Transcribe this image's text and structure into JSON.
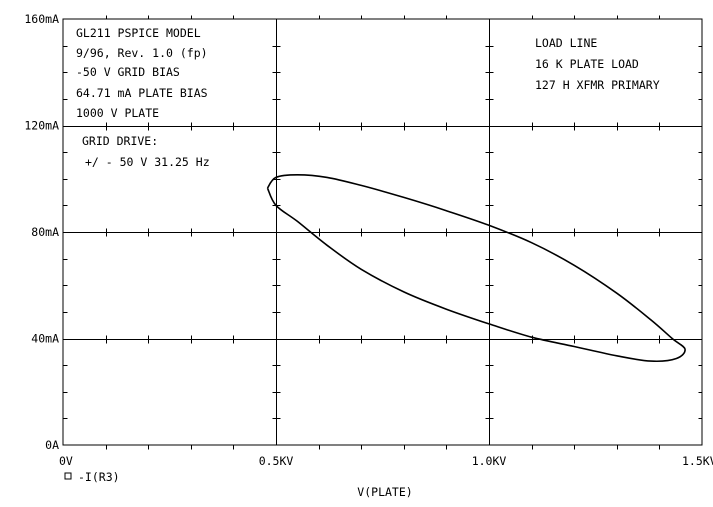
{
  "chart_data": {
    "type": "line",
    "title": "",
    "xlabel": "V(PLATE)",
    "ylabel": "",
    "x_range_kv": [
      0,
      1.5
    ],
    "y_range_ma": [
      0,
      160
    ],
    "x_ticks": [
      {
        "value": 0,
        "label": "0V"
      },
      {
        "value": 0.5,
        "label": "0.5KV"
      },
      {
        "value": 1.0,
        "label": "1.0KV"
      },
      {
        "value": 1.5,
        "label": "1.5KV"
      }
    ],
    "y_ticks": [
      {
        "value": 0,
        "label": "0A"
      },
      {
        "value": 40,
        "label": "40mA"
      },
      {
        "value": 80,
        "label": "80mA"
      },
      {
        "value": 120,
        "label": "120mA"
      },
      {
        "value": 160,
        "label": "160mA"
      }
    ],
    "grid": true,
    "legend": {
      "placement": "bottom-left",
      "marker": "□",
      "label": "-I(R3)"
    },
    "annotations_left": [
      "GL211 PSPICE MODEL",
      "9/96, Rev. 1.0  (fp)",
      "-50 V GRID BIAS",
      "64.71 mA PLATE BIAS",
      "1000 V PLATE"
    ],
    "annotations_grid": [
      "GRID DRIVE:",
      "+/ - 50 V 31.25 Hz"
    ],
    "annotations_right": [
      "LOAD LINE",
      "16 K PLATE LOAD",
      "127 H XFMR PRIMARY"
    ],
    "series": [
      {
        "x": [
          0.48,
          0.5,
          0.55,
          0.62,
          0.7,
          0.8,
          0.9,
          1.0,
          1.1,
          1.2,
          1.3,
          1.38,
          1.43,
          1.46,
          1.44,
          1.38,
          1.3,
          1.2,
          1.1,
          1.0,
          0.9,
          0.8,
          0.7,
          0.62,
          0.55,
          0.5,
          0.48
        ],
        "y": [
          96.5,
          100.5,
          101.5,
          100.5,
          97.5,
          93.0,
          88.0,
          82.5,
          76.0,
          67.5,
          57.0,
          47.0,
          40.0,
          36.0,
          32.5,
          31.5,
          33.5,
          37.0,
          40.5,
          45.5,
          51.0,
          57.5,
          66.0,
          75.0,
          84.0,
          90.0,
          96.5
        ]
      }
    ]
  }
}
